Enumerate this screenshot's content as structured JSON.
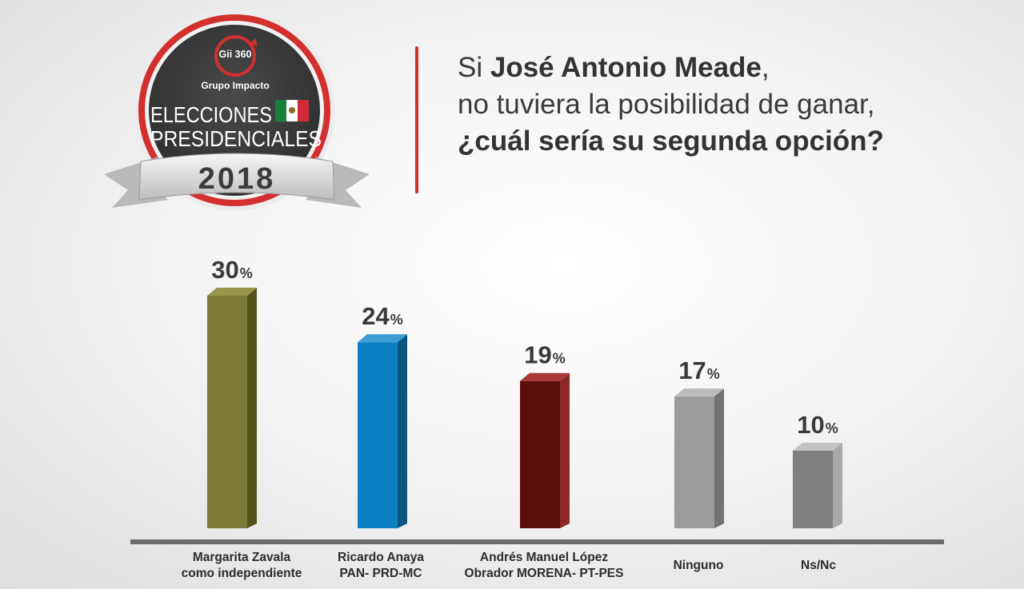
{
  "header": {
    "logo_brand": "Gii 360",
    "logo_sub": "Grupo Impacto",
    "badge_line1": "ELECCIONES",
    "badge_line2": "PRESIDENCIALES",
    "badge_year": "2018",
    "question_prefix": "Si ",
    "question_name": "José Antonio Meade",
    "question_comma": ",",
    "question_line2": "no tuviera la posibilidad de ganar,",
    "question_line3": "¿cuál sería su segunda opción?"
  },
  "colors": {
    "accent_red": "#d32f2f",
    "badge_dark": "#3c3c3c"
  },
  "chart_data": {
    "type": "bar",
    "categories": [
      [
        "Margarita Zavala",
        "como independiente"
      ],
      [
        "Ricardo Anaya",
        "PAN- PRD-MC"
      ],
      [
        "Andrés Manuel López",
        "Obrador MORENA- PT-PES"
      ],
      [
        "Ninguno"
      ],
      [
        "Ns/Nc"
      ]
    ],
    "values": [
      30,
      24,
      19,
      17,
      10
    ],
    "value_suffix": "%",
    "bar_colors": [
      {
        "front": "#7b7a36",
        "side": "#55541f",
        "top": "#98974c"
      },
      {
        "front": "#0a7fc2",
        "side": "#0a567f",
        "top": "#3d9ed6"
      },
      {
        "front": "#5c0e0b",
        "side": "#8c2a28",
        "top": "#a83a37"
      },
      {
        "front": "#9b9b9b",
        "side": "#727272",
        "top": "#bdbdbd"
      },
      {
        "front": "#7f7f7f",
        "side": "#a9a9a9",
        "top": "#c2c2c2"
      }
    ],
    "ylim": [
      0,
      34
    ],
    "grid": false,
    "legend": "none"
  }
}
